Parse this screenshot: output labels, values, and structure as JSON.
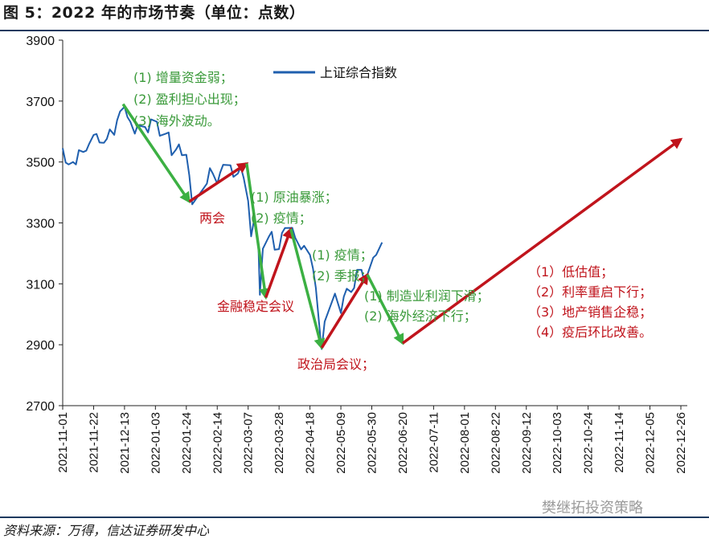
{
  "header": {
    "title": "图 5：2022 年的市场节奏（单位：点数）"
  },
  "footer": {
    "source": "资料来源：万得，信达证券研发中心",
    "watermark": "樊继拓投资策略"
  },
  "colors": {
    "index_line": "#1f5fae",
    "down_arrow": "#3cb043",
    "up_arrow": "#c0141c",
    "green_text": "#3a9a3a",
    "red_text": "#c0141c",
    "frame": "#1f3a5f"
  },
  "chart_data": {
    "type": "line",
    "title": "",
    "xlabel": "",
    "ylabel": "",
    "ylim": [
      2700,
      3900
    ],
    "yticks": [
      2700,
      2900,
      3100,
      3300,
      3500,
      3700,
      3900
    ],
    "xticks": [
      "2021-11-01",
      "2021-11-22",
      "2021-12-13",
      "2022-01-03",
      "2022-01-24",
      "2022-02-14",
      "2022-03-07",
      "2022-03-28",
      "2022-04-18",
      "2022-05-09",
      "2022-05-30",
      "2022-06-20",
      "2022-07-11",
      "2022-08-01",
      "2022-08-22",
      "2022-09-12",
      "2022-10-03",
      "2022-10-24",
      "2022-11-14",
      "2022-12-05",
      "2022-12-26"
    ],
    "grid": false,
    "legend": {
      "position": "top",
      "entries": [
        "上证综合指数"
      ]
    },
    "series": [
      {
        "name": "上证综合指数",
        "points": [
          [
            "2021-11-01",
            3545
          ],
          [
            "2021-11-03",
            3498
          ],
          [
            "2021-11-05",
            3492
          ],
          [
            "2021-11-08",
            3500
          ],
          [
            "2021-11-10",
            3492
          ],
          [
            "2021-11-12",
            3539
          ],
          [
            "2021-11-15",
            3533
          ],
          [
            "2021-11-17",
            3537
          ],
          [
            "2021-11-19",
            3560
          ],
          [
            "2021-11-22",
            3589
          ],
          [
            "2021-11-24",
            3592
          ],
          [
            "2021-11-26",
            3564
          ],
          [
            "2021-11-29",
            3563
          ],
          [
            "2021-12-01",
            3576
          ],
          [
            "2021-12-03",
            3607
          ],
          [
            "2021-12-06",
            3589
          ],
          [
            "2021-12-08",
            3637
          ],
          [
            "2021-12-10",
            3666
          ],
          [
            "2021-12-13",
            3681
          ],
          [
            "2021-12-15",
            3647
          ],
          [
            "2021-12-17",
            3632
          ],
          [
            "2021-12-20",
            3593
          ],
          [
            "2021-12-22",
            3622
          ],
          [
            "2021-12-24",
            3618
          ],
          [
            "2021-12-27",
            3615
          ],
          [
            "2021-12-29",
            3597
          ],
          [
            "2021-12-31",
            3640
          ],
          [
            "2022-01-04",
            3632
          ],
          [
            "2022-01-06",
            3586
          ],
          [
            "2022-01-10",
            3593
          ],
          [
            "2022-01-12",
            3597
          ],
          [
            "2022-01-14",
            3522
          ],
          [
            "2022-01-17",
            3541
          ],
          [
            "2022-01-19",
            3558
          ],
          [
            "2022-01-21",
            3522
          ],
          [
            "2022-01-24",
            3524
          ],
          [
            "2022-01-26",
            3456
          ],
          [
            "2022-01-28",
            3361
          ],
          [
            "2022-02-07",
            3429
          ],
          [
            "2022-02-09",
            3480
          ],
          [
            "2022-02-11",
            3462
          ],
          [
            "2022-02-14",
            3429
          ],
          [
            "2022-02-16",
            3465
          ],
          [
            "2022-02-18",
            3491
          ],
          [
            "2022-02-21",
            3490
          ],
          [
            "2022-02-23",
            3489
          ],
          [
            "2022-02-25",
            3451
          ],
          [
            "2022-02-28",
            3462
          ],
          [
            "2022-03-02",
            3484
          ],
          [
            "2022-03-04",
            3447
          ],
          [
            "2022-03-07",
            3372
          ],
          [
            "2022-03-09",
            3256
          ],
          [
            "2022-03-11",
            3309
          ],
          [
            "2022-03-14",
            3223
          ],
          [
            "2022-03-15",
            3064
          ],
          [
            "2022-03-17",
            3215
          ],
          [
            "2022-03-21",
            3254
          ],
          [
            "2022-03-23",
            3271
          ],
          [
            "2022-03-25",
            3212
          ],
          [
            "2022-03-28",
            3214
          ],
          [
            "2022-03-30",
            3267
          ],
          [
            "2022-04-01",
            3283
          ],
          [
            "2022-04-06",
            3284
          ],
          [
            "2022-04-08",
            3251
          ],
          [
            "2022-04-12",
            3213
          ],
          [
            "2022-04-14",
            3225
          ],
          [
            "2022-04-18",
            3195
          ],
          [
            "2022-04-20",
            3151
          ],
          [
            "2022-04-22",
            3087
          ],
          [
            "2022-04-25",
            2929
          ],
          [
            "2022-04-26",
            2886
          ],
          [
            "2022-04-28",
            2976
          ],
          [
            "2022-05-05",
            3068
          ],
          [
            "2022-05-09",
            3004
          ],
          [
            "2022-05-11",
            3058
          ],
          [
            "2022-05-13",
            3084
          ],
          [
            "2022-05-16",
            3073
          ],
          [
            "2022-05-18",
            3086
          ],
          [
            "2022-05-20",
            3146
          ],
          [
            "2022-05-23",
            3146
          ],
          [
            "2022-05-25",
            3107
          ],
          [
            "2022-05-27",
            3130
          ],
          [
            "2022-05-31",
            3186
          ],
          [
            "2022-06-02",
            3195
          ],
          [
            "2022-06-06",
            3236
          ]
        ]
      }
    ],
    "arrows": [
      {
        "color": "down",
        "from": [
          "2021-12-12",
          3690
        ],
        "to": [
          "2022-01-26",
          3370
        ]
      },
      {
        "color": "up",
        "from": [
          "2022-01-26",
          3370
        ],
        "to": [
          "2022-03-06",
          3495
        ]
      },
      {
        "color": "down",
        "from": [
          "2022-03-06",
          3495
        ],
        "to": [
          "2022-03-19",
          3055
        ]
      },
      {
        "color": "up",
        "from": [
          "2022-03-19",
          3055
        ],
        "to": [
          "2022-04-05",
          3280
        ]
      },
      {
        "color": "down",
        "from": [
          "2022-04-05",
          3280
        ],
        "to": [
          "2022-04-26",
          2890
        ]
      },
      {
        "color": "up",
        "from": [
          "2022-04-26",
          2890
        ],
        "to": [
          "2022-05-27",
          3130
        ]
      },
      {
        "color": "down",
        "from": [
          "2022-05-27",
          3130
        ],
        "to": [
          "2022-06-20",
          2905
        ]
      },
      {
        "color": "up",
        "from": [
          "2022-06-20",
          2905
        ],
        "to": [
          "2022-12-26",
          3575
        ]
      }
    ],
    "annotations": [
      {
        "key": "n1",
        "color": "green",
        "lines": [
          "(1) 增量资金弱；",
          "(2) 盈利担心出现；",
          "(3) 海外波动。"
        ]
      },
      {
        "key": "n2",
        "color": "red",
        "lines": [
          "两会"
        ]
      },
      {
        "key": "n3",
        "color": "green",
        "lines": [
          "(1) 原油暴涨；",
          "(2) 疫情；"
        ]
      },
      {
        "key": "n4",
        "color": "red",
        "lines": [
          "金融稳定会议"
        ]
      },
      {
        "key": "n5",
        "color": "green",
        "lines": [
          "(1) 疫情；",
          "(2) 季报；"
        ]
      },
      {
        "key": "n6",
        "color": "red",
        "lines": [
          "政治局会议；"
        ]
      },
      {
        "key": "n7",
        "color": "green",
        "lines": [
          "(1) 制造业利润下滑；",
          "(2) 海外经济下行；"
        ]
      },
      {
        "key": "n8",
        "color": "red",
        "lines": [
          "（1）低估值；",
          "（2）利率重启下行；",
          "（3）地产销售企稳；",
          "（4）疫后环比改善。"
        ]
      }
    ]
  }
}
